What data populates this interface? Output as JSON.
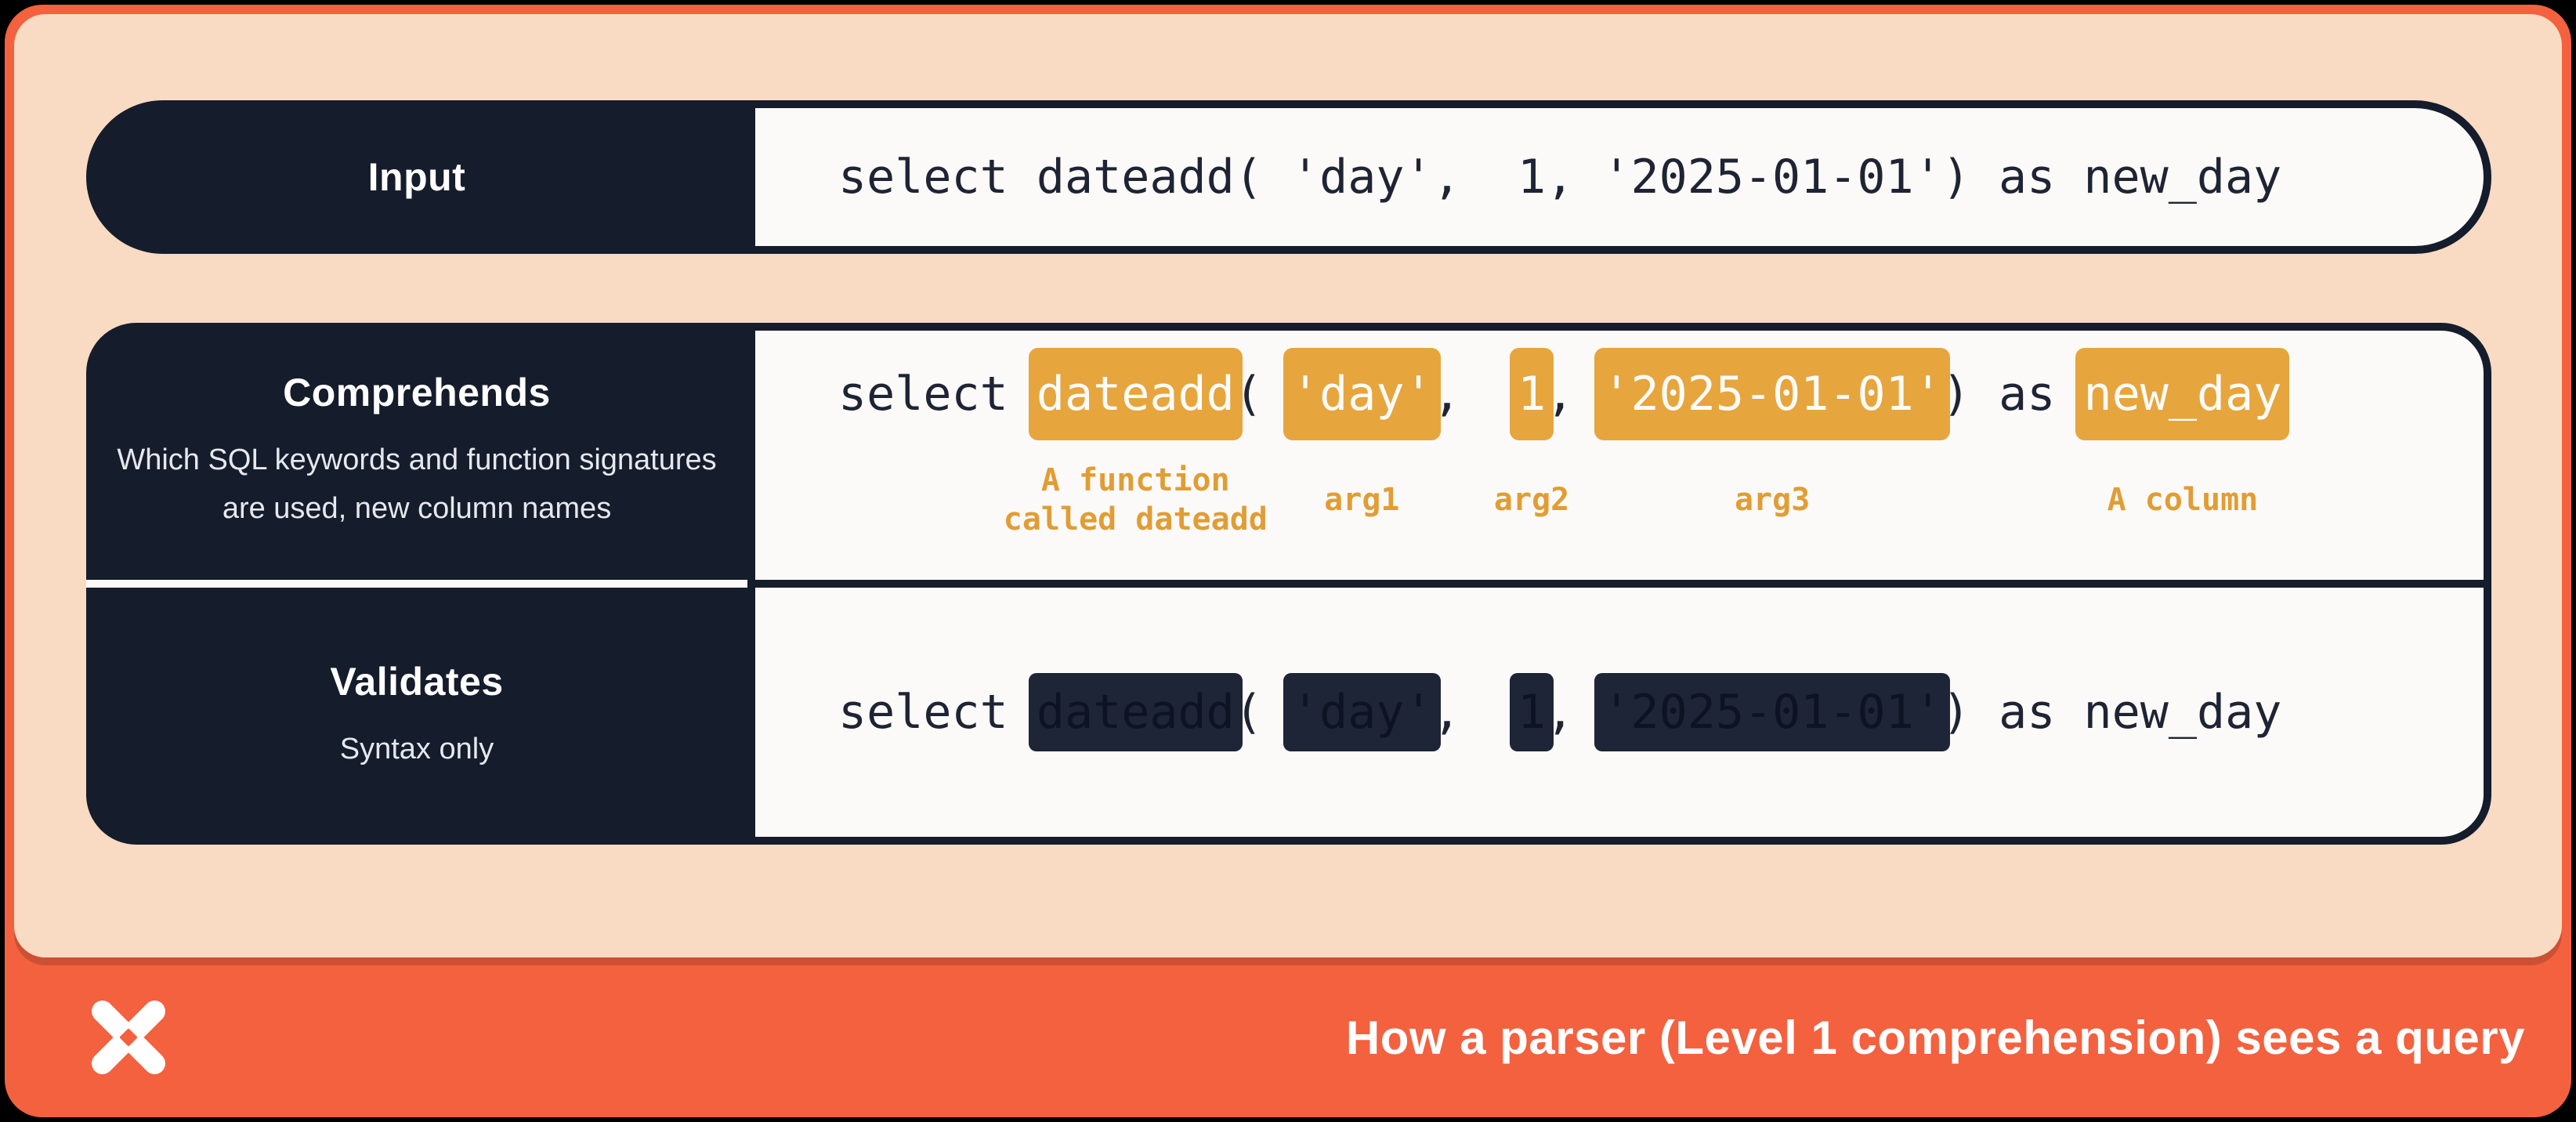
{
  "colors": {
    "background": "#000000",
    "card_border": "#f3613e",
    "card_bg": "#f8dbc2",
    "navy": "#151c2c",
    "panel_bg": "#fbfaf8",
    "code_text": "#1e2434",
    "highlight_bg": "#e7a53e",
    "highlight_text": "#fdfcf9",
    "annotation_text": "#e19d35",
    "redacted_bg": "#1d2536",
    "redacted_text": "#0d1322",
    "subtitle_text": "#e6e8ed",
    "footer_text": "#ffffff"
  },
  "rows": {
    "input": {
      "label": "Input",
      "code": "select dateadd( 'day',  1, '2025-01-01') as new_day"
    },
    "comprehends": {
      "label": "Comprehends",
      "description": "Which SQL keywords and function signatures are used, new column names",
      "tokens": [
        {
          "text": "select ",
          "type": "plain"
        },
        {
          "text": "dateadd",
          "type": "highlight",
          "annotation": "A function\ncalled dateadd"
        },
        {
          "text": "( ",
          "type": "plain"
        },
        {
          "text": "'day'",
          "type": "highlight",
          "annotation": "arg1"
        },
        {
          "text": ",  ",
          "type": "plain"
        },
        {
          "text": "1",
          "type": "highlight",
          "annotation": "arg2"
        },
        {
          "text": ", ",
          "type": "plain"
        },
        {
          "text": "'2025-01-01'",
          "type": "highlight",
          "annotation": "arg3"
        },
        {
          "text": ") as ",
          "type": "plain"
        },
        {
          "text": "new_day",
          "type": "highlight",
          "annotation": "A column"
        }
      ]
    },
    "validates": {
      "label": "Validates",
      "description": "Syntax only",
      "tokens": [
        {
          "text": "select ",
          "type": "plain"
        },
        {
          "text": "dateadd",
          "type": "redacted"
        },
        {
          "text": "( ",
          "type": "plain"
        },
        {
          "text": "'day'",
          "type": "redacted"
        },
        {
          "text": ",  ",
          "type": "plain"
        },
        {
          "text": "1",
          "type": "redacted"
        },
        {
          "text": ", ",
          "type": "plain"
        },
        {
          "text": "'2025-01-01'",
          "type": "redacted"
        },
        {
          "text": ") as ",
          "type": "plain"
        },
        {
          "text": "new_day",
          "type": "plain"
        }
      ]
    }
  },
  "footer": {
    "logo": "dbt-logo",
    "title": "How a parser (Level 1 comprehension) sees a query"
  }
}
